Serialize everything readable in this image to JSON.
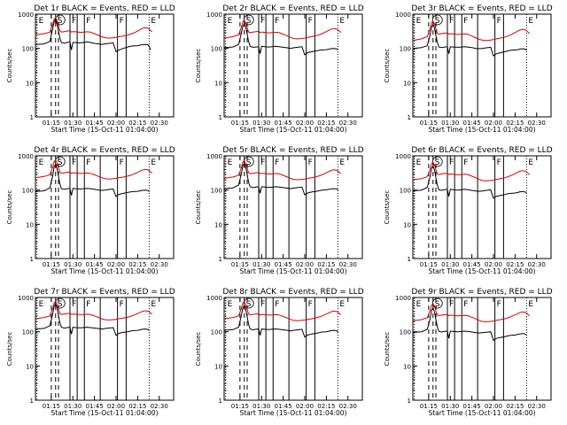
{
  "colors": {
    "events": "#000000",
    "lld": "#dd0000",
    "axes": "#000000",
    "background": "#ffffff"
  },
  "common": {
    "xlabel": "Start Time (15-Oct-11 01:04:00)",
    "ylabel": "Counts/sec",
    "xlim_minutes": [
      64,
      160
    ],
    "ylim": [
      1,
      1000
    ],
    "yscale": "log",
    "xticks": [
      {
        "minute": 75,
        "label": "01:15"
      },
      {
        "minute": 90,
        "label": "01:30"
      },
      {
        "minute": 105,
        "label": "01:45"
      },
      {
        "minute": 120,
        "label": "02:00"
      },
      {
        "minute": 135,
        "label": "02:15"
      },
      {
        "minute": 150,
        "label": "02:30"
      }
    ],
    "yticks": [
      {
        "value": 1,
        "label": "1"
      },
      {
        "value": 10,
        "label": "10"
      },
      {
        "value": 100,
        "label": "100"
      },
      {
        "value": 1000,
        "label": "1000"
      }
    ],
    "time_x": [
      64,
      70,
      74,
      76,
      77,
      78,
      79,
      80,
      81,
      82,
      84,
      86,
      88,
      89,
      90,
      92,
      95,
      98,
      100,
      102,
      105,
      108,
      110,
      112,
      115,
      118,
      120,
      121,
      122,
      125,
      128,
      130,
      132,
      135,
      137,
      138,
      140,
      142,
      143,
      144,
      145,
      146,
      148,
      150,
      152,
      155
    ],
    "markers": [
      {
        "label": "E",
        "minute": 65,
        "style": "dotted"
      },
      {
        "label": "S",
        "minute": 78,
        "style": "dashed"
      },
      {
        "label": "",
        "minute": 75,
        "style": "dashed"
      },
      {
        "label": "",
        "minute": 80,
        "style": "dashed"
      },
      {
        "label": "F",
        "minute": 88,
        "style": "solid"
      },
      {
        "label": "",
        "minute": 93,
        "style": "solid"
      },
      {
        "label": "F",
        "minute": 98,
        "style": "solid"
      },
      {
        "label": "",
        "minute": 109,
        "style": "solid"
      },
      {
        "label": "F",
        "minute": 121,
        "style": "solid"
      },
      {
        "label": "",
        "minute": 127,
        "style": "solid"
      },
      {
        "label": "E",
        "minute": 143,
        "style": "dotted"
      },
      {
        "label": "",
        "minute": 160,
        "style": "dotted"
      }
    ]
  },
  "chart_data": [
    {
      "type": "line",
      "title": "Det 1r BLACK = Events, RED = LLD",
      "series": [
        {
          "name": "Events",
          "color": "#000000",
          "y": [
            130,
            135,
            160,
            380,
            600,
            700,
            520,
            320,
            200,
            150,
            140,
            150,
            155,
            90,
            150,
            148,
            145,
            150,
            155,
            150,
            140,
            135,
            130,
            135,
            140,
            145,
            80,
            85,
            90,
            100,
            110,
            115,
            118,
            120,
            125,
            128,
            130,
            128,
            115,
            90,
            null,
            null,
            null,
            null,
            null,
            null
          ]
        },
        {
          "name": "LLD",
          "color": "#dd0000",
          "y": [
            250,
            270,
            300,
            500,
            700,
            800,
            650,
            450,
            330,
            300,
            310,
            320,
            330,
            300,
            310,
            305,
            295,
            300,
            305,
            300,
            270,
            240,
            220,
            205,
            200,
            205,
            210,
            215,
            220,
            230,
            245,
            260,
            280,
            320,
            360,
            380,
            400,
            390,
            370,
            330,
            300,
            null,
            null,
            null,
            null,
            null
          ]
        }
      ]
    },
    {
      "type": "line",
      "title": "Det 2r BLACK = Events, RED = LLD",
      "series": [
        {
          "name": "Events",
          "color": "#000000",
          "y": [
            105,
            110,
            130,
            280,
            450,
            520,
            420,
            260,
            160,
            115,
            108,
            110,
            112,
            70,
            115,
            112,
            110,
            113,
            115,
            112,
            108,
            104,
            100,
            104,
            108,
            112,
            65,
            70,
            75,
            80,
            85,
            88,
            90,
            92,
            95,
            98,
            100,
            98,
            90,
            null,
            null,
            null,
            null,
            null,
            null,
            null
          ]
        },
        {
          "name": "LLD",
          "color": "#dd0000",
          "y": [
            200,
            220,
            250,
            420,
            600,
            650,
            550,
            400,
            300,
            290,
            300,
            310,
            315,
            290,
            300,
            295,
            285,
            290,
            295,
            290,
            260,
            230,
            210,
            195,
            190,
            195,
            200,
            205,
            210,
            220,
            235,
            250,
            270,
            310,
            340,
            360,
            380,
            370,
            350,
            320,
            290,
            null,
            null,
            null,
            null,
            null
          ]
        }
      ]
    },
    {
      "type": "line",
      "title": "Det 3r BLACK = Events, RED = LLD",
      "series": [
        {
          "name": "Events",
          "color": "#000000",
          "y": [
            100,
            105,
            120,
            250,
            420,
            500,
            400,
            240,
            150,
            110,
            105,
            110,
            112,
            70,
            112,
            110,
            108,
            110,
            112,
            110,
            105,
            100,
            98,
            100,
            104,
            108,
            60,
            65,
            70,
            75,
            80,
            85,
            88,
            90,
            92,
            95,
            98,
            95,
            88,
            null,
            null,
            null,
            null,
            null,
            null,
            null
          ]
        },
        {
          "name": "LLD",
          "color": "#dd0000",
          "y": [
            170,
            190,
            220,
            380,
            560,
            620,
            520,
            380,
            280,
            260,
            270,
            280,
            285,
            260,
            270,
            265,
            255,
            260,
            265,
            260,
            230,
            200,
            185,
            175,
            170,
            175,
            180,
            185,
            190,
            200,
            215,
            230,
            250,
            290,
            320,
            340,
            360,
            350,
            330,
            300,
            270,
            null,
            null,
            null,
            null,
            null
          ]
        }
      ]
    },
    {
      "type": "line",
      "title": "Det 4r BLACK = Events, RED = LLD",
      "series": [
        {
          "name": "Events",
          "color": "#000000",
          "y": [
            90,
            95,
            115,
            260,
            480,
            560,
            430,
            250,
            150,
            110,
            105,
            110,
            112,
            70,
            112,
            110,
            108,
            110,
            112,
            110,
            105,
            100,
            98,
            100,
            104,
            108,
            65,
            70,
            75,
            80,
            85,
            88,
            90,
            92,
            95,
            98,
            100,
            98,
            90,
            null,
            null,
            null,
            null,
            null,
            null,
            null
          ]
        },
        {
          "name": "LLD",
          "color": "#dd0000",
          "y": [
            230,
            250,
            280,
            460,
            680,
            760,
            620,
            440,
            330,
            310,
            320,
            330,
            335,
            310,
            320,
            315,
            305,
            310,
            315,
            310,
            280,
            250,
            230,
            215,
            210,
            215,
            220,
            225,
            230,
            240,
            255,
            270,
            290,
            330,
            360,
            380,
            400,
            390,
            370,
            340,
            310,
            null,
            null,
            null,
            null,
            null
          ]
        }
      ]
    },
    {
      "type": "line",
      "title": "Det 5r BLACK = Events, RED = LLD",
      "series": [
        {
          "name": "Events",
          "color": "#000000",
          "y": [
            110,
            115,
            140,
            300,
            520,
            600,
            460,
            280,
            170,
            125,
            118,
            122,
            125,
            80,
            125,
            122,
            120,
            123,
            125,
            122,
            118,
            114,
            110,
            114,
            118,
            122,
            72,
            78,
            82,
            88,
            92,
            96,
            100,
            102,
            105,
            108,
            110,
            108,
            100,
            null,
            null,
            null,
            null,
            null,
            null,
            null
          ]
        },
        {
          "name": "LLD",
          "color": "#dd0000",
          "y": [
            220,
            240,
            270,
            450,
            660,
            740,
            600,
            430,
            320,
            300,
            310,
            320,
            325,
            300,
            310,
            305,
            295,
            300,
            305,
            300,
            270,
            240,
            220,
            205,
            200,
            205,
            210,
            215,
            220,
            230,
            245,
            260,
            280,
            320,
            350,
            370,
            390,
            380,
            360,
            330,
            300,
            null,
            null,
            null,
            null,
            null
          ]
        }
      ]
    },
    {
      "type": "line",
      "title": "Det 6r BLACK = Events, RED = LLD",
      "series": [
        {
          "name": "Events",
          "color": "#000000",
          "y": [
            95,
            100,
            120,
            250,
            430,
            500,
            390,
            230,
            140,
            102,
            98,
            102,
            105,
            65,
            105,
            102,
            100,
            103,
            105,
            102,
            98,
            94,
            92,
            94,
            98,
            102,
            58,
            62,
            66,
            70,
            74,
            78,
            80,
            82,
            85,
            88,
            90,
            88,
            82,
            null,
            null,
            null,
            null,
            null,
            null,
            null
          ]
        },
        {
          "name": "LLD",
          "color": "#dd0000",
          "y": [
            200,
            215,
            245,
            400,
            580,
            650,
            540,
            390,
            300,
            285,
            295,
            305,
            310,
            285,
            295,
            290,
            280,
            285,
            290,
            285,
            255,
            225,
            205,
            190,
            185,
            190,
            195,
            200,
            205,
            215,
            230,
            245,
            265,
            300,
            330,
            350,
            370,
            360,
            340,
            310,
            280,
            null,
            null,
            null,
            null,
            null
          ]
        }
      ]
    },
    {
      "type": "line",
      "title": "Det 7r BLACK = Events, RED = LLD",
      "series": [
        {
          "name": "Events",
          "color": "#000000",
          "y": [
            120,
            125,
            150,
            330,
            560,
            650,
            500,
            300,
            185,
            135,
            128,
            132,
            135,
            85,
            135,
            132,
            130,
            133,
            135,
            132,
            128,
            124,
            120,
            124,
            128,
            132,
            78,
            84,
            90,
            96,
            100,
            104,
            108,
            110,
            114,
            118,
            120,
            118,
            108,
            null,
            null,
            null,
            null,
            null,
            null,
            null
          ]
        },
        {
          "name": "LLD",
          "color": "#dd0000",
          "y": [
            240,
            260,
            290,
            480,
            700,
            780,
            640,
            460,
            340,
            320,
            330,
            340,
            345,
            320,
            330,
            325,
            315,
            320,
            325,
            320,
            290,
            260,
            240,
            225,
            220,
            225,
            230,
            235,
            240,
            250,
            265,
            280,
            300,
            340,
            370,
            390,
            410,
            400,
            380,
            350,
            320,
            null,
            null,
            null,
            null,
            null
          ]
        }
      ]
    },
    {
      "type": "line",
      "title": "Det 8r BLACK = Events, RED = LLD",
      "series": [
        {
          "name": "Events",
          "color": "#000000",
          "y": [
            110,
            115,
            135,
            300,
            500,
            580,
            450,
            270,
            165,
            120,
            114,
            118,
            120,
            78,
            120,
            118,
            116,
            119,
            121,
            118,
            114,
            110,
            106,
            110,
            114,
            118,
            70,
            75,
            80,
            86,
            90,
            94,
            98,
            100,
            104,
            108,
            110,
            108,
            100,
            null,
            null,
            null,
            null,
            null,
            null,
            null
          ]
        },
        {
          "name": "LLD",
          "color": "#dd0000",
          "y": [
            240,
            260,
            290,
            480,
            690,
            770,
            630,
            450,
            330,
            310,
            320,
            330,
            335,
            310,
            320,
            315,
            305,
            310,
            315,
            310,
            280,
            250,
            230,
            215,
            210,
            215,
            220,
            225,
            230,
            240,
            255,
            270,
            290,
            330,
            360,
            380,
            400,
            390,
            370,
            340,
            310,
            null,
            null,
            null,
            null,
            null
          ]
        }
      ]
    },
    {
      "type": "line",
      "title": "Det 9r BLACK = Events, RED = LLD",
      "series": [
        {
          "name": "Events",
          "color": "#000000",
          "y": [
            95,
            100,
            118,
            240,
            420,
            490,
            380,
            225,
            140,
            103,
            98,
            102,
            104,
            64,
            104,
            102,
            100,
            103,
            104,
            102,
            98,
            94,
            92,
            94,
            97,
            100,
            56,
            60,
            64,
            68,
            72,
            76,
            78,
            80,
            84,
            86,
            88,
            86,
            80,
            null,
            null,
            null,
            null,
            null,
            null,
            null
          ]
        },
        {
          "name": "LLD",
          "color": "#dd0000",
          "y": [
            210,
            225,
            255,
            420,
            600,
            670,
            560,
            400,
            310,
            295,
            305,
            315,
            320,
            295,
            305,
            300,
            290,
            295,
            300,
            295,
            265,
            235,
            215,
            200,
            195,
            200,
            205,
            210,
            215,
            225,
            240,
            255,
            275,
            310,
            340,
            360,
            380,
            370,
            350,
            320,
            290,
            null,
            null,
            null,
            null,
            null
          ]
        }
      ]
    }
  ]
}
